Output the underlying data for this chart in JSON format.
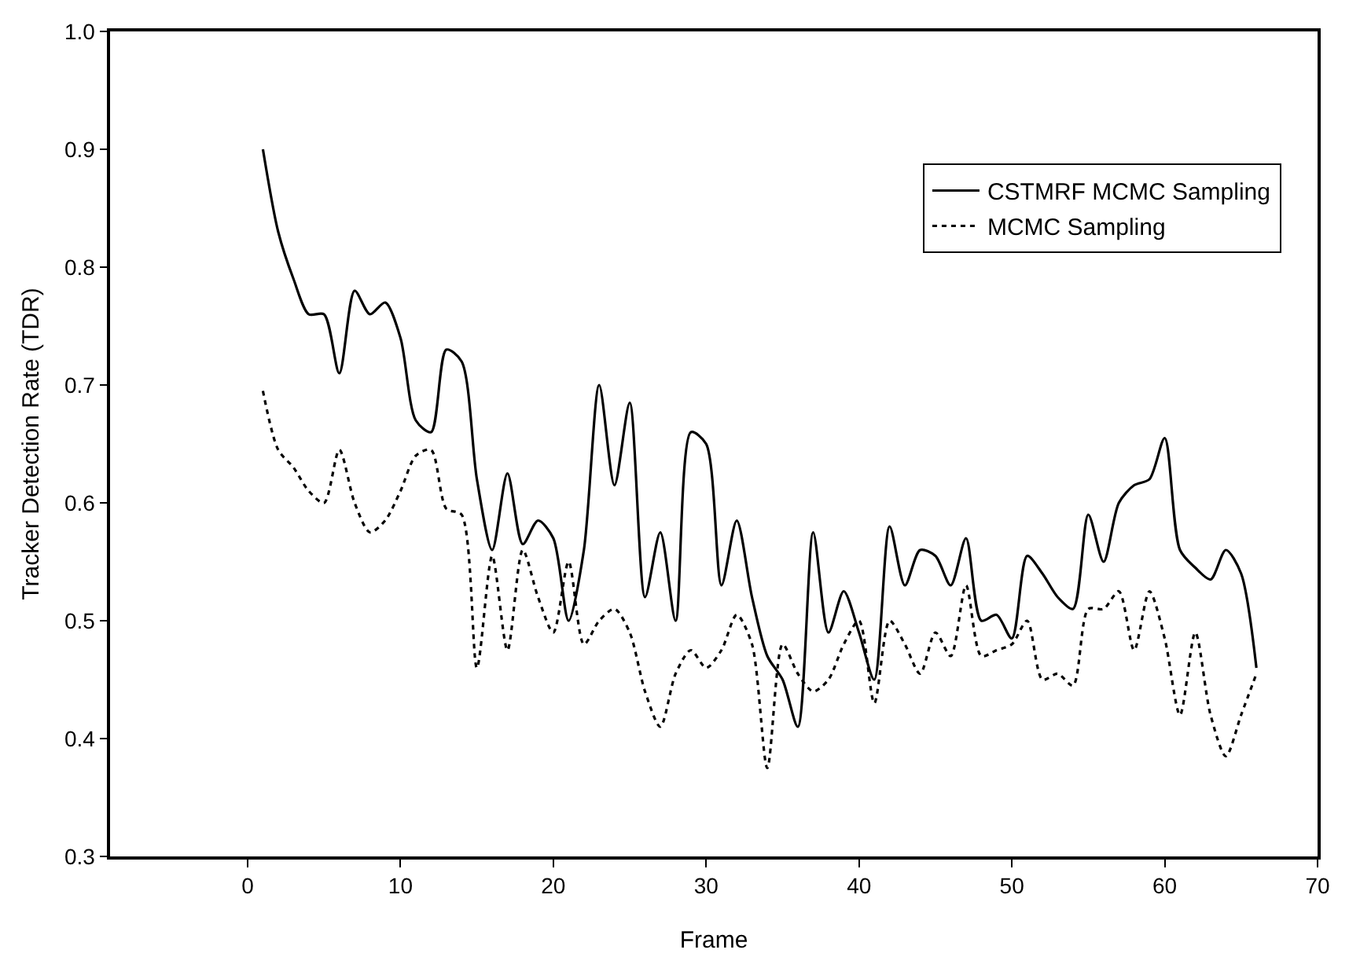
{
  "chart_data": {
    "type": "line",
    "xlabel": "Frame",
    "ylabel": "Tracker Detection Rate (TDR)",
    "x": [
      1,
      2,
      3,
      4,
      5,
      6,
      7,
      8,
      9,
      10,
      11,
      12,
      13,
      14,
      15,
      16,
      17,
      18,
      19,
      20,
      21,
      22,
      23,
      24,
      25,
      26,
      27,
      28,
      29,
      30,
      31,
      32,
      33,
      34,
      35,
      36,
      37,
      38,
      39,
      40,
      41,
      42,
      43,
      44,
      45,
      46,
      47,
      48,
      49,
      50,
      51,
      52,
      53,
      54,
      55,
      56,
      57,
      58,
      59,
      60,
      61,
      62,
      63,
      64,
      65,
      66
    ],
    "series": [
      {
        "name": "CSTMRF MCMC Sampling",
        "color": "#000000",
        "line_style": "solid",
        "values": [
          0.9,
          0.83,
          0.79,
          0.76,
          0.76,
          0.71,
          0.78,
          0.76,
          0.77,
          0.74,
          0.67,
          0.66,
          0.73,
          0.72,
          0.62,
          0.56,
          0.625,
          0.565,
          0.585,
          0.57,
          0.5,
          0.56,
          0.7,
          0.615,
          0.685,
          0.52,
          0.575,
          0.5,
          0.66,
          0.65,
          0.53,
          0.585,
          0.52,
          0.47,
          0.45,
          0.41,
          0.575,
          0.49,
          0.525,
          0.49,
          0.45,
          0.58,
          0.53,
          0.56,
          0.555,
          0.53,
          0.57,
          0.5,
          0.505,
          0.485,
          0.555,
          0.54,
          0.52,
          0.51,
          0.59,
          0.55,
          0.6,
          0.615,
          0.62,
          0.655,
          0.56,
          0.545,
          0.535,
          0.56,
          0.54,
          0.46
        ]
      },
      {
        "name": "MCMC Sampling",
        "color": "#000000",
        "line_style": "dotted",
        "values": [
          0.695,
          0.645,
          0.63,
          0.61,
          0.6,
          0.645,
          0.6,
          0.575,
          0.585,
          0.61,
          0.64,
          0.645,
          0.595,
          0.59,
          0.46,
          0.555,
          0.475,
          0.56,
          0.52,
          0.49,
          0.55,
          0.48,
          0.5,
          0.51,
          0.49,
          0.44,
          0.41,
          0.455,
          0.475,
          0.46,
          0.475,
          0.505,
          0.48,
          0.375,
          0.48,
          0.455,
          0.44,
          0.45,
          0.48,
          0.5,
          0.43,
          0.5,
          0.48,
          0.455,
          0.49,
          0.47,
          0.53,
          0.47,
          0.475,
          0.48,
          0.5,
          0.45,
          0.455,
          0.445,
          0.51,
          0.51,
          0.525,
          0.475,
          0.525,
          0.485,
          0.42,
          0.49,
          0.42,
          0.385,
          0.42,
          0.455
        ]
      }
    ],
    "xlim": [
      -9,
      70
    ],
    "xticks": [
      0,
      10,
      20,
      30,
      40,
      50,
      60,
      70
    ],
    "ylim": [
      0.3,
      1.0
    ],
    "yticks": [
      {
        "value": 0.3,
        "label": "0.3"
      },
      {
        "value": 0.4,
        "label": "0.4"
      },
      {
        "value": 0.5,
        "label": "0.5"
      },
      {
        "value": 0.6,
        "label": "0.6"
      },
      {
        "value": 0.7,
        "label": "0.7"
      },
      {
        "value": 0.8,
        "label": "0.8"
      },
      {
        "value": 0.9,
        "label": "0.9"
      },
      {
        "value": 1.0,
        "label": "1.0"
      }
    ],
    "legend": "top right",
    "marker": "none"
  }
}
